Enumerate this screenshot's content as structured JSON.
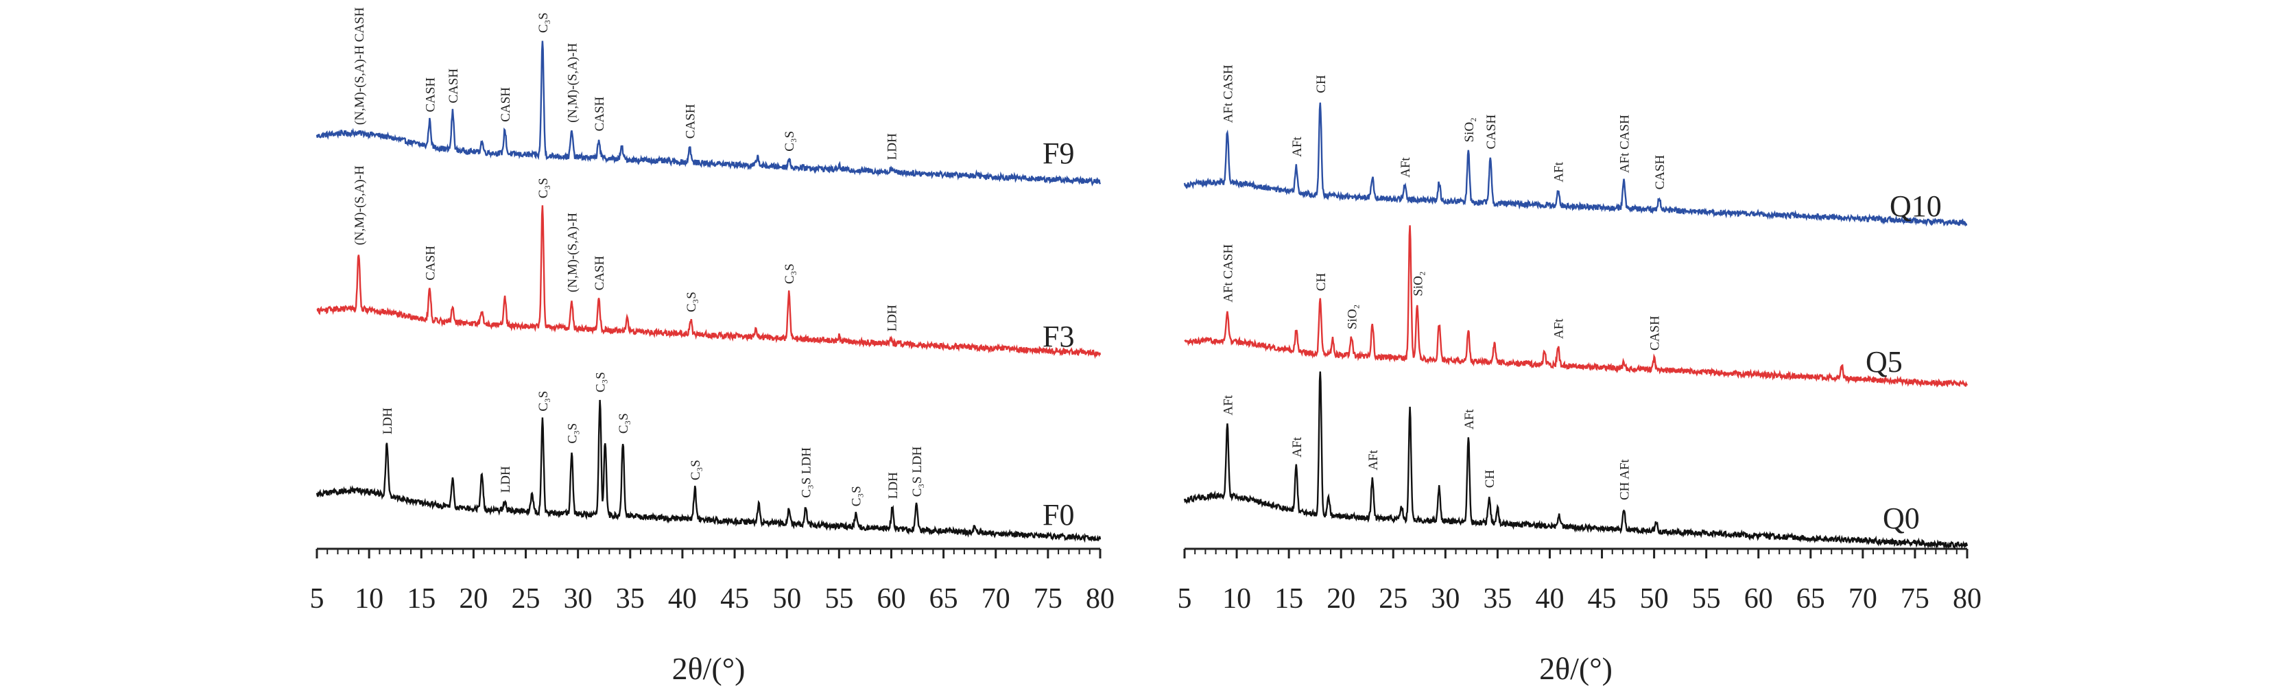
{
  "figure": {
    "axis_unit_label": "2θ/(°)",
    "ticks": [
      5,
      10,
      15,
      20,
      25,
      30,
      35,
      40,
      45,
      50,
      55,
      60,
      65,
      70,
      75,
      80
    ]
  },
  "chart_data": [
    {
      "type": "line",
      "title": "",
      "xlabel": "2θ/(°)",
      "ylabel": "",
      "xlim": [
        5,
        80
      ],
      "grid": false,
      "series": [
        {
          "name": "F9",
          "color": "#2b4fa3",
          "baseline_start": 0.6,
          "baseline_end": 0.0,
          "hump": {
            "center": 9.0,
            "width": 6.0,
            "height": 0.22
          },
          "peaks": [
            [
              15.8,
              0.42
            ],
            [
              18.0,
              0.62
            ],
            [
              20.8,
              0.18
            ],
            [
              23.0,
              0.38
            ],
            [
              26.6,
              1.85
            ],
            [
              29.4,
              0.42
            ],
            [
              32.0,
              0.3
            ],
            [
              34.2,
              0.2
            ],
            [
              40.7,
              0.25
            ],
            [
              47.2,
              0.15
            ],
            [
              50.2,
              0.12
            ],
            [
              55.0,
              0.06
            ],
            [
              60.0,
              0.06
            ],
            [
              68.2,
              0.05
            ]
          ],
          "labels": [
            {
              "x": 9.0,
              "text": "(N,M)-(S,A)-H CASH"
            },
            {
              "x": 15.8,
              "text": "CASH"
            },
            {
              "x": 18.0,
              "text": "CASH"
            },
            {
              "x": 23.0,
              "text": "CASH"
            },
            {
              "x": 26.6,
              "text": "C₃S"
            },
            {
              "x": 29.4,
              "text": "(N,M)-(S,A)-H"
            },
            {
              "x": 32.0,
              "text": "CASH"
            },
            {
              "x": 40.7,
              "text": "CASH"
            },
            {
              "x": 50.2,
              "text": "C₃S"
            },
            {
              "x": 60.0,
              "text": "LDH"
            }
          ]
        },
        {
          "name": "F3",
          "color": "#e03535",
          "baseline_start": 0.6,
          "baseline_end": 0.0,
          "hump": {
            "center": 9.0,
            "width": 5.5,
            "height": 0.15
          },
          "peaks": [
            [
              9.0,
              0.9
            ],
            [
              15.8,
              0.5
            ],
            [
              18.0,
              0.25
            ],
            [
              20.8,
              0.2
            ],
            [
              23.0,
              0.45
            ],
            [
              26.6,
              1.95
            ],
            [
              29.4,
              0.45
            ],
            [
              32.0,
              0.5
            ],
            [
              34.7,
              0.2
            ],
            [
              40.8,
              0.22
            ],
            [
              47.0,
              0.12
            ],
            [
              50.2,
              0.75
            ],
            [
              55.0,
              0.08
            ],
            [
              60.0,
              0.06
            ]
          ],
          "labels": [
            {
              "x": 9.0,
              "text": "(N,M)-(S,A)-H"
            },
            {
              "x": 15.8,
              "text": "CASH"
            },
            {
              "x": 26.6,
              "text": "C₃S"
            },
            {
              "x": 29.4,
              "text": "(N,M)-(S,A)-H"
            },
            {
              "x": 32.0,
              "text": "CASH"
            },
            {
              "x": 40.8,
              "text": "C₃S"
            },
            {
              "x": 50.2,
              "text": "C₃S"
            },
            {
              "x": 60.0,
              "text": "LDH"
            }
          ]
        },
        {
          "name": "F0",
          "color": "#111111",
          "baseline_start": 0.6,
          "baseline_end": 0.0,
          "hump": {
            "center": 9.0,
            "width": 5.5,
            "height": 0.2
          },
          "peaks": [
            [
              11.7,
              0.85
            ],
            [
              18.0,
              0.45
            ],
            [
              20.8,
              0.6
            ],
            [
              23.0,
              0.15
            ],
            [
              25.6,
              0.3
            ],
            [
              26.6,
              1.5
            ],
            [
              29.4,
              1.0
            ],
            [
              32.1,
              1.85
            ],
            [
              32.6,
              1.2
            ],
            [
              34.3,
              1.2
            ],
            [
              41.2,
              0.5
            ],
            [
              47.3,
              0.3
            ],
            [
              50.2,
              0.25
            ],
            [
              51.8,
              0.3
            ],
            [
              56.6,
              0.2
            ],
            [
              60.1,
              0.35
            ],
            [
              62.4,
              0.4
            ],
            [
              68.0,
              0.1
            ]
          ],
          "labels": [
            {
              "x": 11.7,
              "text": "LDH"
            },
            {
              "x": 23.0,
              "text": "LDH"
            },
            {
              "x": 26.6,
              "text": "C₃S"
            },
            {
              "x": 29.4,
              "text": "C₃S"
            },
            {
              "x": 32.1,
              "text": "C₃S"
            },
            {
              "x": 34.3,
              "text": "C₃S"
            },
            {
              "x": 41.2,
              "text": "C₃S"
            },
            {
              "x": 51.8,
              "text": "C₃S LDH"
            },
            {
              "x": 56.6,
              "text": "C₃S"
            },
            {
              "x": 60.1,
              "text": "LDH"
            },
            {
              "x": 62.4,
              "text": "C₃S LDH"
            }
          ]
        }
      ]
    },
    {
      "type": "line",
      "title": "",
      "xlabel": "2θ/(°)",
      "ylabel": "",
      "xlim": [
        5,
        80
      ],
      "grid": false,
      "series": [
        {
          "name": "Q10",
          "color": "#2b4fa3",
          "baseline_start": 0.55,
          "baseline_end": 0.0,
          "hump": {
            "center": 9.0,
            "width": 5.5,
            "height": 0.15
          },
          "peaks": [
            [
              9.1,
              0.85
            ],
            [
              15.7,
              0.45
            ],
            [
              18.0,
              1.55
            ],
            [
              23.0,
              0.35
            ],
            [
              26.1,
              0.22
            ],
            [
              29.4,
              0.3
            ],
            [
              32.2,
              0.85
            ],
            [
              34.3,
              0.75
            ],
            [
              40.8,
              0.25
            ],
            [
              47.1,
              0.45
            ],
            [
              50.5,
              0.2
            ]
          ],
          "labels": [
            {
              "x": 9.1,
              "text": "AFt CASH"
            },
            {
              "x": 15.7,
              "text": "AFt"
            },
            {
              "x": 18.0,
              "text": "CH"
            },
            {
              "x": 26.1,
              "text": "AFt"
            },
            {
              "x": 32.2,
              "text": "SiO₂"
            },
            {
              "x": 34.3,
              "text": "CASH"
            },
            {
              "x": 40.8,
              "text": "AFt"
            },
            {
              "x": 47.1,
              "text": "AFt CASH"
            },
            {
              "x": 50.5,
              "text": "CASH"
            }
          ]
        },
        {
          "name": "Q5",
          "color": "#e03535",
          "baseline_start": 0.6,
          "baseline_end": 0.0,
          "hump": {
            "center": 9.0,
            "width": 5.5,
            "height": 0.15
          },
          "peaks": [
            [
              9.1,
              0.5
            ],
            [
              15.7,
              0.35
            ],
            [
              18.0,
              0.9
            ],
            [
              19.2,
              0.25
            ],
            [
              21.0,
              0.3
            ],
            [
              23.0,
              0.55
            ],
            [
              26.6,
              2.2
            ],
            [
              27.3,
              0.9
            ],
            [
              29.4,
              0.6
            ],
            [
              32.2,
              0.5
            ],
            [
              34.7,
              0.3
            ],
            [
              39.5,
              0.2
            ],
            [
              40.8,
              0.3
            ],
            [
              47.1,
              0.1
            ],
            [
              50.0,
              0.18
            ],
            [
              68.0,
              0.2
            ]
          ],
          "labels": [
            {
              "x": 9.1,
              "text": "AFt CASH"
            },
            {
              "x": 18.0,
              "text": "CH"
            },
            {
              "x": 21.0,
              "text": "SiO₂"
            },
            {
              "x": 27.3,
              "text": "SiO₂"
            },
            {
              "x": 40.8,
              "text": "AFt"
            },
            {
              "x": 50.0,
              "text": "CASH"
            }
          ]
        },
        {
          "name": "Q0",
          "color": "#111111",
          "baseline_start": 0.6,
          "baseline_end": 0.0,
          "hump": {
            "center": 9.0,
            "width": 5.5,
            "height": 0.25
          },
          "peaks": [
            [
              9.1,
              1.2
            ],
            [
              15.7,
              0.75
            ],
            [
              18.0,
              2.4
            ],
            [
              18.8,
              0.3
            ],
            [
              23.0,
              0.65
            ],
            [
              25.8,
              0.2
            ],
            [
              26.6,
              1.85
            ],
            [
              29.4,
              0.55
            ],
            [
              32.2,
              1.4
            ],
            [
              34.2,
              0.45
            ],
            [
              35.0,
              0.25
            ],
            [
              40.9,
              0.2
            ],
            [
              47.1,
              0.35
            ],
            [
              50.2,
              0.15
            ]
          ],
          "labels": [
            {
              "x": 9.1,
              "text": "AFt"
            },
            {
              "x": 15.7,
              "text": "AFt"
            },
            {
              "x": 23.0,
              "text": "AFt"
            },
            {
              "x": 32.2,
              "text": "AFt"
            },
            {
              "x": 34.2,
              "text": "CH"
            },
            {
              "x": 47.1,
              "text": "CH AFt"
            }
          ]
        }
      ]
    }
  ]
}
